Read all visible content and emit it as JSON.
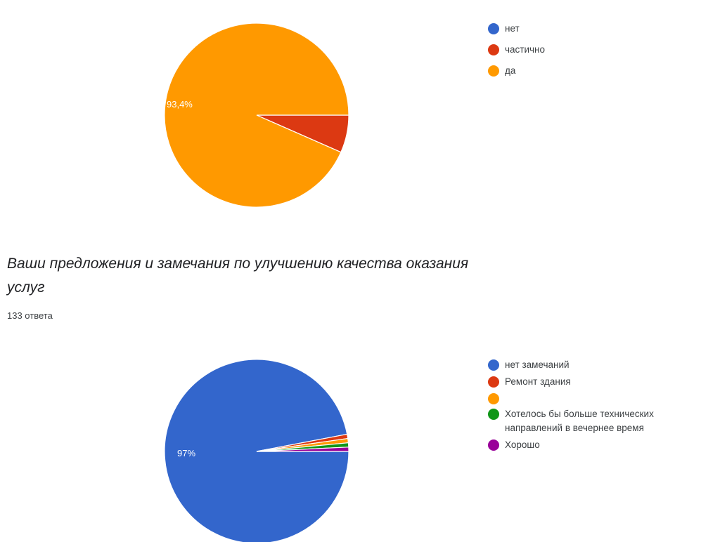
{
  "colors": {
    "blue": "#3366cc",
    "red": "#dc3912",
    "orange": "#ff9900",
    "green": "#109618",
    "purple": "#990099"
  },
  "question2": {
    "title": "Ваши предложения и замечания по улучшению качества оказания услуг",
    "responses": "133 ответа"
  },
  "chart_data": [
    {
      "type": "pie",
      "labels": [
        "нет",
        "частично",
        "да"
      ],
      "values": [
        0,
        6.6,
        93.4
      ],
      "colors": [
        "#3366cc",
        "#dc3912",
        "#ff9900"
      ],
      "slice_labels": [
        "",
        "",
        "93,4%"
      ]
    },
    {
      "type": "pie",
      "labels": [
        "нет замечаний",
        "Ремонт здания",
        "",
        "Хотелось бы больше технических направлений в вечернее время",
        "Хорошо"
      ],
      "values": [
        97,
        0.75,
        0.75,
        0.75,
        0.75
      ],
      "colors": [
        "#3366cc",
        "#dc3912",
        "#ff9900",
        "#109618",
        "#990099"
      ],
      "slice_labels": [
        "97%",
        "",
        "",
        "",
        ""
      ]
    }
  ]
}
